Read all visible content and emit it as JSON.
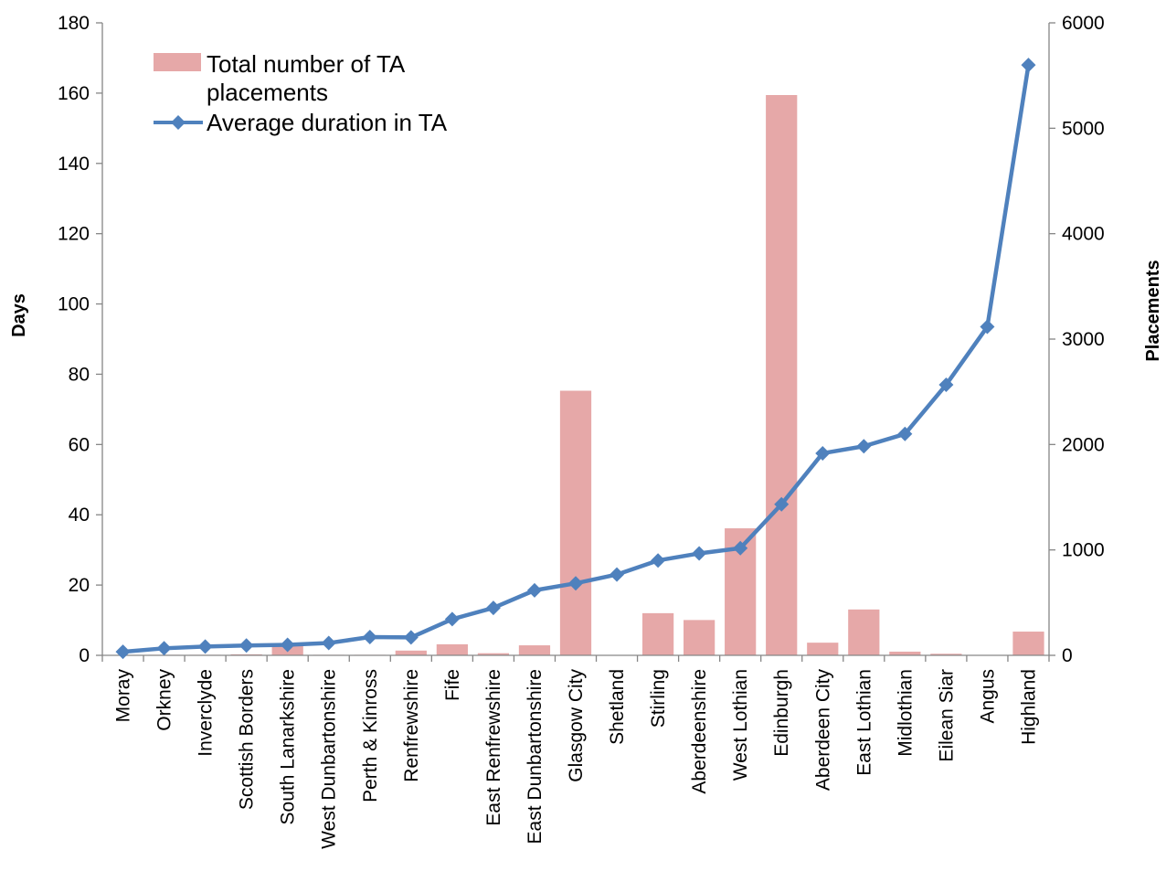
{
  "chart_data": {
    "type": "bar+line",
    "categories": [
      "Moray",
      "Orkney",
      "Inverclyde",
      "Scottish Borders",
      "South Lanarkshire",
      "West Dunbartonshire",
      "Perth & Kinross",
      "Renfrewshire",
      "Fife",
      "East Renfrewshire",
      "East Dunbartonshire",
      "Glasgow City",
      "Shetland",
      "Stirling",
      "Aberdeenshire",
      "West Lothian",
      "Edinburgh",
      "Aberdeen City",
      "East Lothian",
      "Midlothian",
      "Eilean Siar",
      "Angus",
      "Highland"
    ],
    "series": [
      {
        "name": "Total number of TA placements",
        "type": "bar",
        "axis": "right",
        "color": "#e6a8a8",
        "values": [
          0,
          5,
          5,
          10,
          90,
          5,
          5,
          45,
          105,
          20,
          95,
          2510,
          0,
          400,
          335,
          1205,
          5315,
          120,
          435,
          35,
          15,
          0,
          225
        ]
      },
      {
        "name": "Average duration in TA",
        "type": "line",
        "axis": "left",
        "color": "#4f81bd",
        "values": [
          1,
          2,
          2.5,
          2.8,
          3,
          3.5,
          5.2,
          5.1,
          10.3,
          13.5,
          18.5,
          20.5,
          23,
          27,
          29,
          30.5,
          43,
          57.5,
          59.5,
          63,
          77,
          93.5,
          168
        ]
      }
    ],
    "left_axis": {
      "label": "Days",
      "min": 0,
      "max": 180,
      "step": 20,
      "ticks": [
        "0",
        "20",
        "40",
        "60",
        "80",
        "100",
        "120",
        "140",
        "160",
        "180"
      ]
    },
    "right_axis": {
      "label": "Placements",
      "min": 0,
      "max": 6000,
      "step": 1000,
      "ticks": [
        "0",
        "1000",
        "2000",
        "3000",
        "4000",
        "5000",
        "6000"
      ]
    },
    "legend": {
      "placement": "top-left",
      "bar_label_line1": "Total number of TA",
      "bar_label_line2": "placements",
      "line_label": "Average duration in TA"
    },
    "grid": false
  }
}
